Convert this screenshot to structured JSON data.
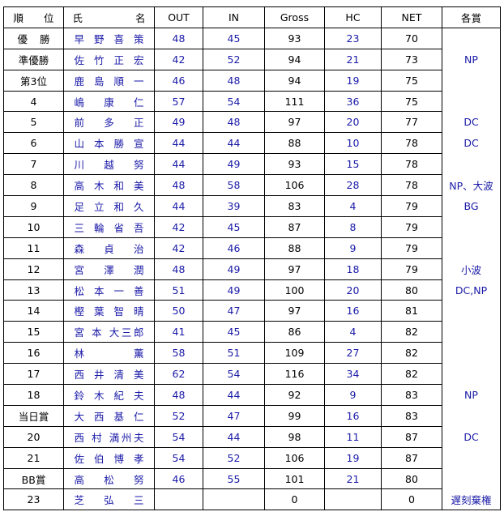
{
  "table": {
    "header": [
      "順 位",
      "氏 名",
      "OUT",
      "IN",
      "Gross",
      "HC",
      "NET",
      "各賞"
    ],
    "rows": [
      [
        "優 勝",
        "早 野 喜 策",
        48,
        45,
        93,
        23,
        70,
        null
      ],
      [
        "準優勝",
        "佐 竹 正 宏",
        42,
        52,
        94,
        21,
        73,
        "NP"
      ],
      [
        "第3位",
        "鹿 島 順 一",
        46,
        48,
        94,
        19,
        75,
        null
      ],
      [
        4,
        "嶋 康 仁",
        57,
        54,
        111,
        36,
        75,
        null
      ],
      [
        5,
        "前 多 正",
        49,
        48,
        97,
        20,
        77,
        "DC"
      ],
      [
        6,
        "山 本 勝 宣",
        44,
        44,
        88,
        10,
        78,
        "DC"
      ],
      [
        7,
        "川 越 努",
        44,
        49,
        93,
        15,
        78,
        null
      ],
      [
        8,
        "高 木 和 美",
        48,
        58,
        106,
        28,
        78,
        "NP、大波"
      ],
      [
        9,
        "足 立 和 久",
        44,
        39,
        83,
        4,
        79,
        "BG"
      ],
      [
        10,
        "三 輪 省 吾",
        42,
        45,
        87,
        8,
        79,
        null
      ],
      [
        11,
        "森 貞 治",
        42,
        46,
        88,
        9,
        79,
        null
      ],
      [
        12,
        "宮 澤 潤",
        48,
        49,
        97,
        18,
        79,
        "小波"
      ],
      [
        13,
        "松 本 一 善",
        51,
        49,
        100,
        20,
        80,
        "DC,NP"
      ],
      [
        14,
        "樫 葉 智 晴",
        50,
        47,
        97,
        16,
        81,
        null
      ],
      [
        15,
        "宮 本 大三郎",
        41,
        45,
        86,
        4,
        82,
        null
      ],
      [
        16,
        "林 薫",
        58,
        51,
        109,
        27,
        82,
        null
      ],
      [
        17,
        "西 井 清 美",
        62,
        54,
        116,
        34,
        82,
        null
      ],
      [
        18,
        "鈴 木 紀 夫",
        48,
        44,
        92,
        9,
        83,
        "NP"
      ],
      [
        "当日賞",
        "大 西 基 仁",
        52,
        47,
        99,
        16,
        83,
        null
      ],
      [
        20,
        "西 村 満州夫",
        54,
        44,
        98,
        11,
        87,
        "DC"
      ],
      [
        21,
        "佐 伯 博 孝",
        54,
        52,
        106,
        19,
        87,
        null
      ],
      [
        "BB賞",
        "高 松 努",
        46,
        55,
        101,
        21,
        80,
        null
      ],
      [
        23,
        "芝 弘 三",
        null,
        null,
        0,
        null,
        0,
        "遅刻棄権"
      ]
    ]
  }
}
